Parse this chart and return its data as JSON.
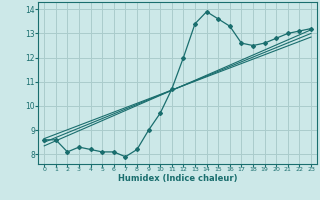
{
  "title": "",
  "xlabel": "Humidex (Indice chaleur)",
  "ylabel": "",
  "bg_color": "#cce8e8",
  "grid_color": "#aacccc",
  "line_color": "#1a6e6e",
  "xlim": [
    -0.5,
    23.5
  ],
  "ylim": [
    7.6,
    14.3
  ],
  "yticks": [
    8,
    9,
    10,
    11,
    12,
    13,
    14
  ],
  "xticks": [
    0,
    1,
    2,
    3,
    4,
    5,
    6,
    7,
    8,
    9,
    10,
    11,
    12,
    13,
    14,
    15,
    16,
    17,
    18,
    19,
    20,
    21,
    22,
    23
  ],
  "curve_x": [
    0,
    1,
    2,
    3,
    4,
    5,
    6,
    7,
    8,
    9,
    10,
    11,
    12,
    13,
    14,
    15,
    16,
    17,
    18,
    19,
    20,
    21,
    22,
    23
  ],
  "curve_y": [
    8.6,
    8.6,
    8.1,
    8.3,
    8.2,
    8.1,
    8.1,
    7.9,
    8.2,
    9.0,
    9.7,
    10.7,
    12.0,
    13.4,
    13.9,
    13.6,
    13.3,
    12.6,
    12.5,
    12.6,
    12.8,
    13.0,
    13.1,
    13.2
  ],
  "line1_x": [
    0,
    23
  ],
  "line1_y": [
    8.35,
    13.15
  ],
  "line2_x": [
    0,
    23
  ],
  "line2_y": [
    8.5,
    13.0
  ],
  "line3_x": [
    0,
    23
  ],
  "line3_y": [
    8.65,
    12.85
  ]
}
